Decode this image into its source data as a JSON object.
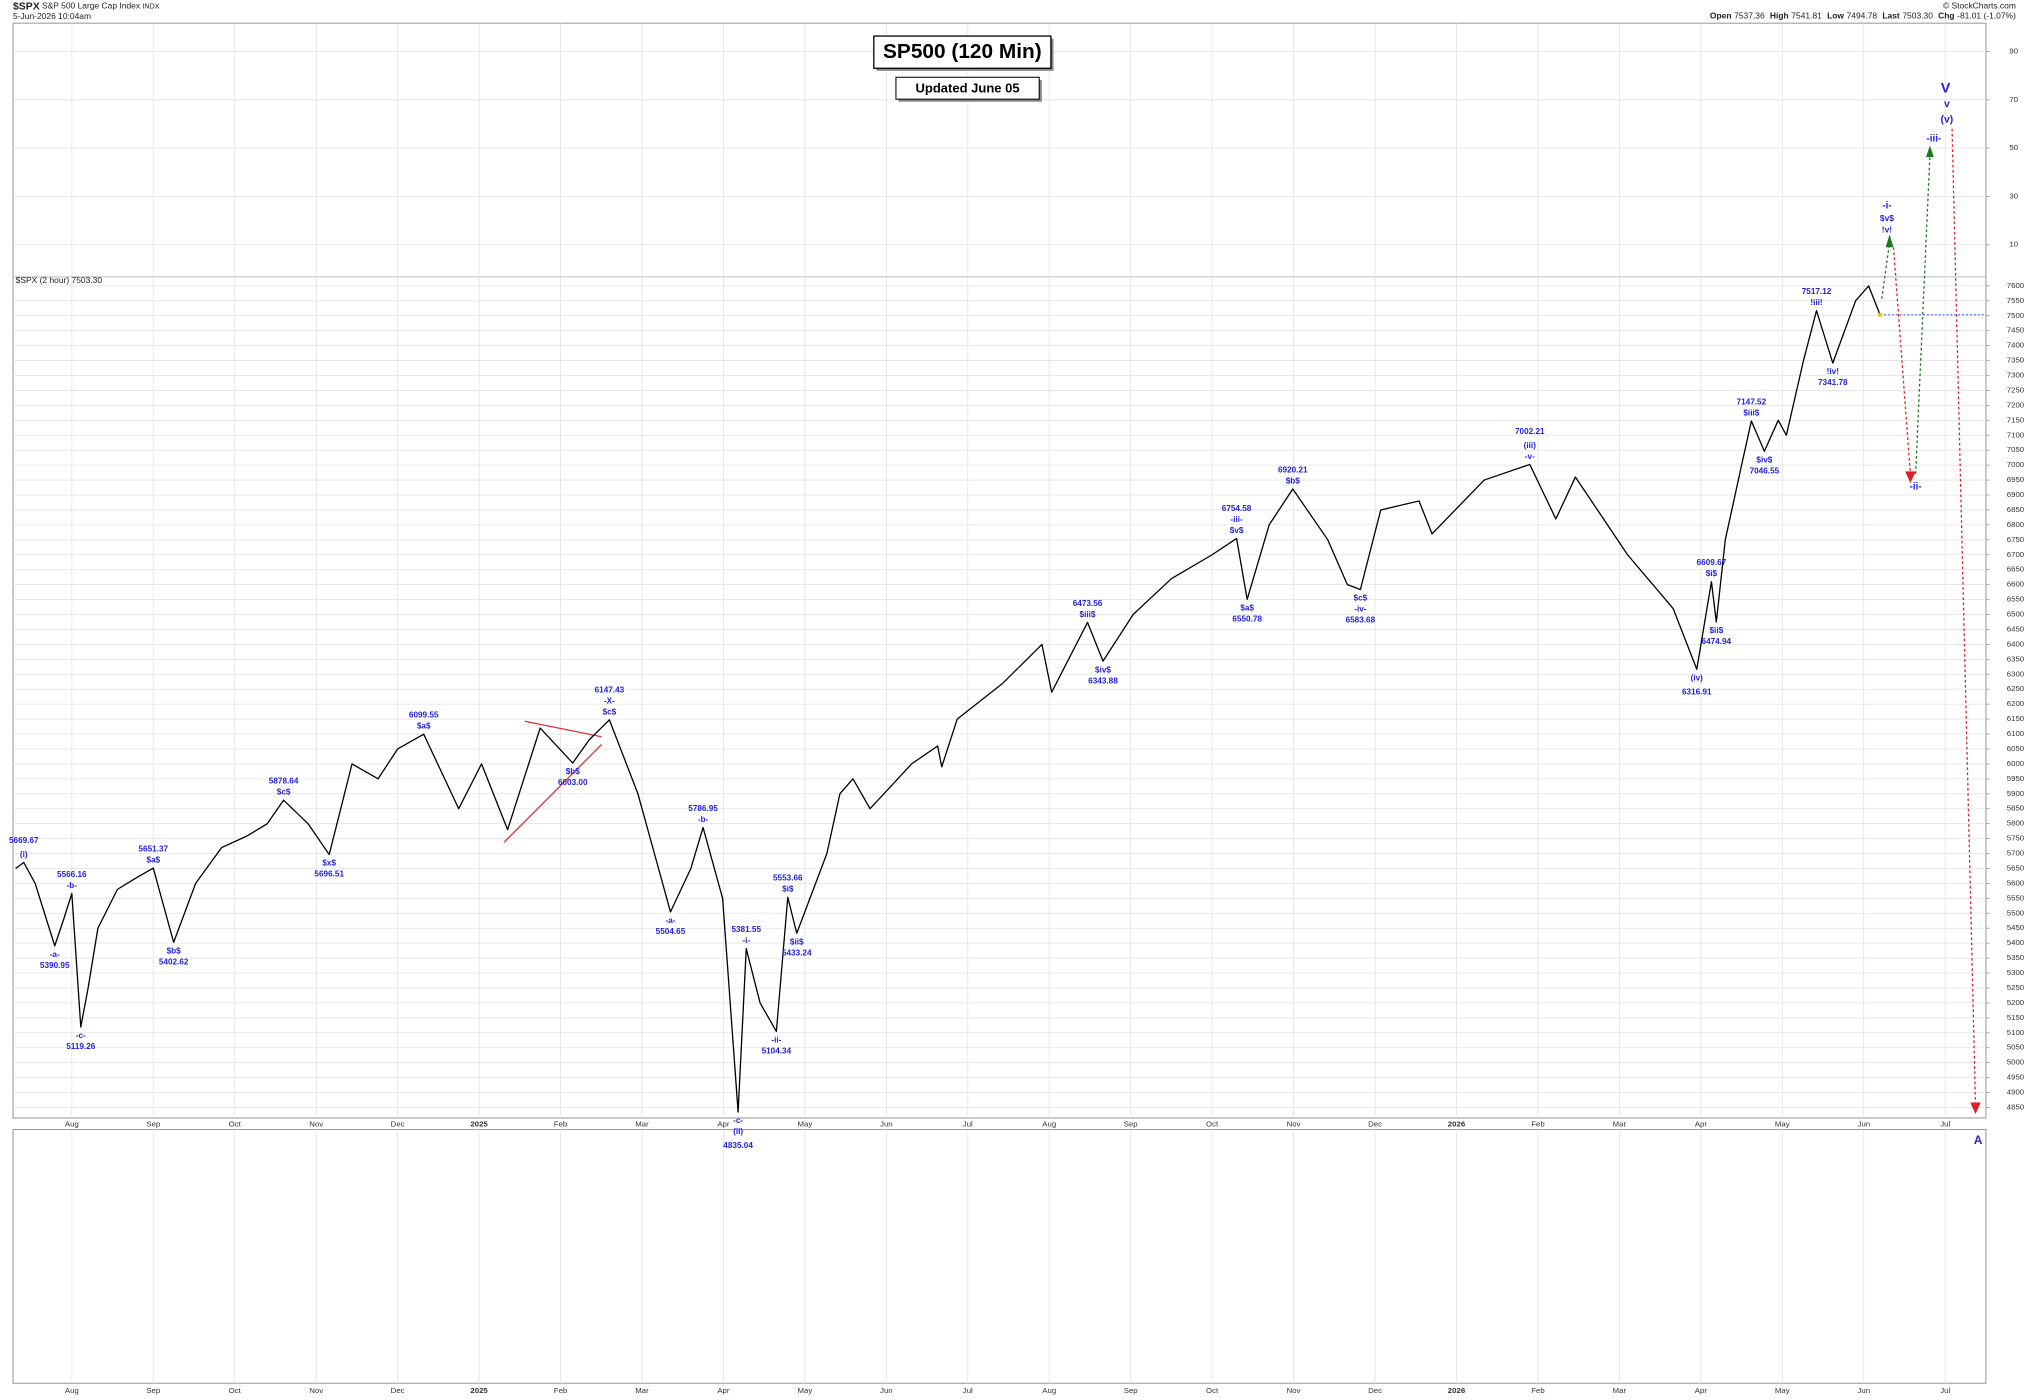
{
  "header": {
    "symbol": "$SPX",
    "name": "S&P 500 Large Cap Index",
    "exchange": "INDX",
    "date": "5-Jun-2026 10:04am",
    "watermark": "© StockCharts.com",
    "quote": [
      {
        "label": "Open",
        "value": "7537.36"
      },
      {
        "label": "High",
        "value": "7541.81"
      },
      {
        "label": "Low",
        "value": "7494.78"
      },
      {
        "label": "Last",
        "value": "7503.30"
      },
      {
        "label": "Chg",
        "value": "-81.01 (-1.07%)"
      }
    ]
  },
  "chart_data": {
    "type": "line",
    "title": "SP500 (120 Min)",
    "subtitle": "Updated June 05",
    "grid": true,
    "xlim": [
      0.31,
      24.5
    ],
    "xticks": [
      {
        "value": 1,
        "label": "Aug"
      },
      {
        "value": 2,
        "label": "Sep"
      },
      {
        "value": 3,
        "label": "Oct"
      },
      {
        "value": 4,
        "label": "Nov"
      },
      {
        "value": 5,
        "label": "Dec"
      },
      {
        "value": 6,
        "label": "2025"
      },
      {
        "value": 7,
        "label": "Feb"
      },
      {
        "value": 8,
        "label": "Mar"
      },
      {
        "value": 9,
        "label": "Apr"
      },
      {
        "value": 10,
        "label": "May"
      },
      {
        "value": 11,
        "label": "Jun"
      },
      {
        "value": 12,
        "label": "Jul"
      },
      {
        "value": 13,
        "label": "Aug"
      },
      {
        "value": 14,
        "label": "Sep"
      },
      {
        "value": 15,
        "label": "Oct"
      },
      {
        "value": 16,
        "label": "Nov"
      },
      {
        "value": 17,
        "label": "Dec"
      },
      {
        "value": 18,
        "label": "2026"
      },
      {
        "value": 19,
        "label": "Feb"
      },
      {
        "value": 20,
        "label": "Mar"
      },
      {
        "value": 21,
        "label": "Apr"
      },
      {
        "value": 22,
        "label": "May"
      },
      {
        "value": 23,
        "label": "Jun"
      },
      {
        "value": 24,
        "label": "Jul"
      }
    ],
    "ylim": [
      4815,
      7630
    ],
    "yticks": [
      4850,
      4900,
      4950,
      5000,
      5050,
      5100,
      5150,
      5200,
      5250,
      5300,
      5350,
      5400,
      5450,
      5500,
      5550,
      5600,
      5650,
      5700,
      5750,
      5800,
      5850,
      5900,
      5950,
      6000,
      6050,
      6100,
      6150,
      6200,
      6250,
      6300,
      6350,
      6400,
      6450,
      6500,
      6550,
      6600,
      6650,
      6700,
      6750,
      6800,
      6850,
      6900,
      6950,
      7000,
      7050,
      7100,
      7150,
      7200,
      7250,
      7300,
      7350,
      7400,
      7450,
      7500,
      7550,
      7600
    ],
    "y2lim": [
      0,
      100
    ],
    "y2ticks": [
      10,
      30,
      50,
      70,
      90
    ],
    "x": [
      0.31,
      0.41,
      0.55,
      0.79,
      0.9,
      1.0,
      1.11,
      1.2,
      1.32,
      1.56,
      1.8,
      2.0,
      2.25,
      2.52,
      2.84,
      3.16,
      3.4,
      3.6,
      3.9,
      4.16,
      4.44,
      4.76,
      5.0,
      5.32,
      5.75,
      6.03,
      6.35,
      6.75,
      7.15,
      7.35,
      7.6,
      7.95,
      8.35,
      8.6,
      8.75,
      8.99,
      9.18,
      9.28,
      9.45,
      9.65,
      9.79,
      9.9,
      10.27,
      10.43,
      10.59,
      10.8,
      11.31,
      11.63,
      11.68,
      11.87,
      12.43,
      12.91,
      13.03,
      13.47,
      13.66,
      14.03,
      14.5,
      15.0,
      15.3,
      15.43,
      15.7,
      15.99,
      16.42,
      16.66,
      16.82,
      17.07,
      17.54,
      17.7,
      18.34,
      18.9,
      19.22,
      19.46,
      20.1,
      20.66,
      20.95,
      21.13,
      21.19,
      21.3,
      21.5,
      21.62,
      21.78,
      21.95,
      22.05,
      22.26,
      22.42,
      22.62,
      22.9,
      23.06,
      23.2
    ],
    "series": [
      {
        "name": "$SPX (2 hour) 7503.30",
        "color": "#000000",
        "values": [
          5650,
          5670,
          5600,
          5390.95,
          5480,
          5566.16,
          5119.26,
          5250,
          5450,
          5580,
          5620,
          5651.37,
          5402.62,
          5600,
          5720,
          5760,
          5800,
          5878.64,
          5800,
          5696.51,
          6000,
          5950,
          6050,
          6099.55,
          5850,
          6000,
          5780,
          6120,
          6003.0,
          6080,
          6147.43,
          5900,
          5504.65,
          5650,
          5786.95,
          5550,
          4835.04,
          5381.55,
          5200,
          5104.34,
          5553.66,
          5433.24,
          5700,
          5900,
          5950,
          5850,
          6000,
          6060,
          5990,
          6150,
          6270,
          6400,
          6240,
          6473.56,
          6343.88,
          6500,
          6620,
          6700,
          6754.58,
          6550.78,
          6800,
          6920.21,
          6750,
          6600,
          6583.68,
          6850,
          6880,
          6770,
          6950,
          7002.21,
          6820,
          6960,
          6700,
          6520,
          6316.91,
          6609.67,
          6474.94,
          6750,
          7000,
          7147.52,
          7046.55,
          7150,
          7100,
          7350,
          7517.12,
          7341.78,
          7550,
          7600,
          7503.3
        ]
      }
    ],
    "waves": [
      {
        "x": 0.41,
        "price": 5669.67,
        "labels": [
          "(i)"
        ]
      },
      {
        "x": 0.79,
        "price": 5390.95,
        "labels": [
          "-a-"
        ]
      },
      {
        "x": 1.0,
        "price": 5566.16,
        "labels": [
          "-b-"
        ]
      },
      {
        "x": 1.11,
        "price": 5119.26,
        "labels": [
          "-c-"
        ]
      },
      {
        "x": 2.0,
        "price": 5651.37,
        "labels": [
          "$a$"
        ]
      },
      {
        "x": 2.25,
        "price": 5402.62,
        "labels": [
          "$b$"
        ]
      },
      {
        "x": 3.6,
        "price": 5878.64,
        "labels": [
          "$c$"
        ]
      },
      {
        "x": 4.16,
        "price": 5696.51,
        "labels": [
          "$x$"
        ]
      },
      {
        "x": 5.32,
        "price": 6099.55,
        "labels": [
          "$a$"
        ]
      },
      {
        "x": 7.15,
        "price": 6003.0,
        "price_label": "6003.00",
        "labels": [
          "$b$"
        ]
      },
      {
        "x": 7.6,
        "price": 6147.43,
        "labels": [
          "-X-",
          "$c$"
        ]
      },
      {
        "x": 8.35,
        "price": 5504.65,
        "labels": [
          "-a-"
        ]
      },
      {
        "x": 8.75,
        "price": 5786.95,
        "labels": [
          "-b-"
        ]
      },
      {
        "x": 9.18,
        "price": 4835.04,
        "labels": [
          "-c-",
          "(ii)"
        ]
      },
      {
        "x": 9.28,
        "price": 5381.55,
        "labels": [
          "-i-"
        ]
      },
      {
        "x": 9.65,
        "price": 5104.34,
        "labels": [
          "-ii-"
        ]
      },
      {
        "x": 9.79,
        "price": 5553.66,
        "labels": [
          "$i$"
        ]
      },
      {
        "x": 9.9,
        "price": 5433.24,
        "labels": [
          "$ii$"
        ]
      },
      {
        "x": 13.47,
        "price": 6473.56,
        "labels": [
          "$iii$"
        ]
      },
      {
        "x": 13.66,
        "price": 6343.88,
        "labels": [
          "$iv$"
        ]
      },
      {
        "x": 15.3,
        "price": 6754.58,
        "labels": [
          "-iii-",
          "$v$"
        ]
      },
      {
        "x": 15.43,
        "price": 6550.78,
        "labels": [
          "$a$"
        ]
      },
      {
        "x": 15.99,
        "price": 6920.21,
        "labels": [
          "$b$"
        ]
      },
      {
        "x": 16.82,
        "price": 6583.68,
        "labels": [
          "$c$",
          "-iv-"
        ]
      },
      {
        "x": 18.9,
        "price": 7002.21,
        "labels": [
          "(iii)",
          "-v-"
        ]
      },
      {
        "x": 20.95,
        "price": 6316.91,
        "labels": [
          "(iv)"
        ]
      },
      {
        "x": 21.13,
        "price": 6609.67,
        "labels": [
          "$i$"
        ]
      },
      {
        "x": 21.19,
        "price": 6474.94,
        "labels": [
          "$ii$"
        ]
      },
      {
        "x": 21.62,
        "price": 7147.52,
        "labels": [
          "$iii$"
        ]
      },
      {
        "x": 21.78,
        "price": 7046.55,
        "labels": [
          "$iv$"
        ]
      },
      {
        "x": 22.42,
        "price": 7517.12,
        "labels": [
          "!iii!"
        ]
      },
      {
        "x": 22.62,
        "price": 7341.78,
        "labels": [
          "!iv!"
        ]
      }
    ],
    "projection_labels": {
      "i": [
        "-i-",
        "$v$",
        "!v!"
      ],
      "ii": "-ii-",
      "iii": "-iii-",
      "v": [
        "V",
        "v",
        "(v)"
      ],
      "a": "A"
    }
  }
}
